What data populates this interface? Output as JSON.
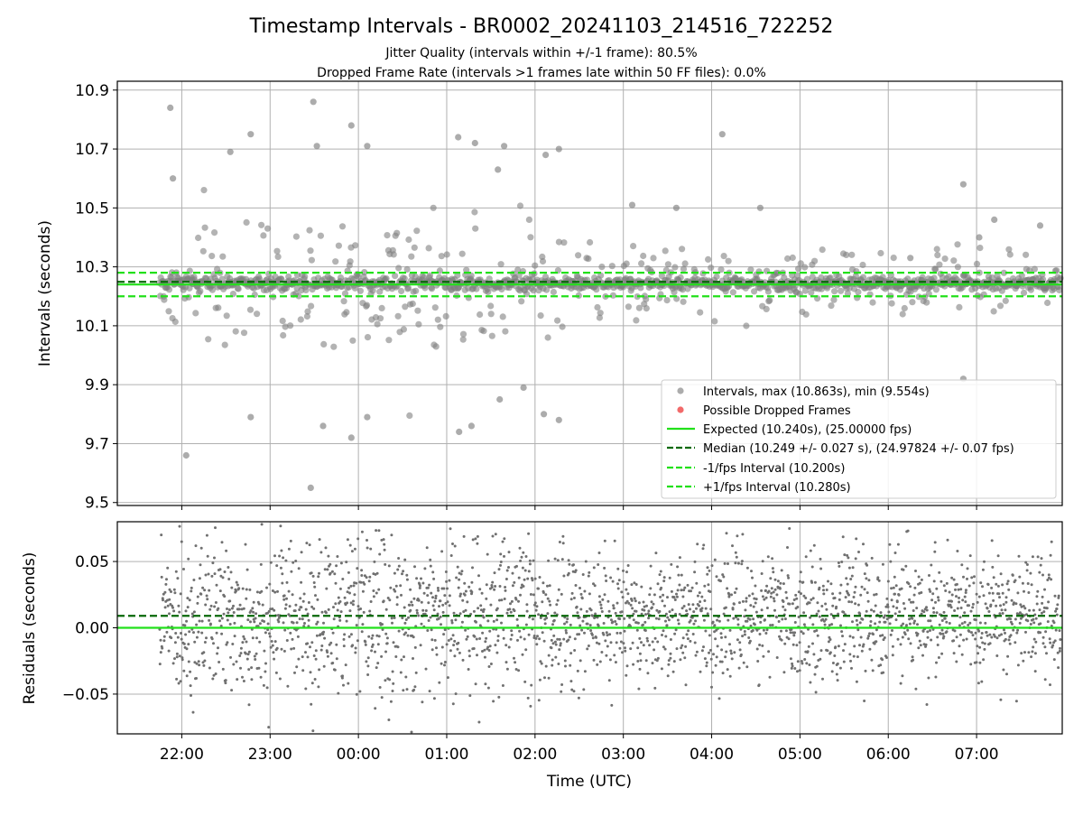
{
  "chart_data": {
    "type": "scatter",
    "title": "Timestamp Intervals - BR0002_20241103_214516_722252",
    "subtitle_lines": [
      "Jitter Quality (intervals within +/-1 frame): 80.5%",
      "Dropped Frame Rate (intervals >1 frames late within 50 FF files): 0.0%"
    ],
    "x_axis": {
      "label": "Time (UTC)",
      "ticks": [
        "22:00",
        "23:00",
        "00:00",
        "01:00",
        "02:00",
        "03:00",
        "04:00",
        "05:00",
        "06:00",
        "07:00"
      ],
      "range_hours": [
        21.27,
        31.97
      ],
      "data_start_hours": 21.75
    },
    "top_panel": {
      "ylabel": "Intervals (seconds)",
      "ylim": [
        9.49,
        10.93
      ],
      "yticks": [
        "9.5",
        "9.7",
        "9.9",
        "10.1",
        "10.3",
        "10.5",
        "10.7",
        "10.9"
      ],
      "grid": true,
      "series": [
        {
          "name": "Intervals, max (10.863s), min (9.554s)",
          "kind": "scatter",
          "color": "#808080",
          "max": 10.863,
          "min": 9.554,
          "center": 10.24,
          "spread": 0.027
        },
        {
          "name": "Possible Dropped Frames",
          "kind": "scatter",
          "color": "#f15a5a",
          "count": 0
        },
        {
          "name": "Expected (10.240s), (25.00000 fps)",
          "kind": "hline",
          "y": 10.24,
          "color": "#22e01a",
          "style": "solid"
        },
        {
          "name": "Median (10.249 +/- 0.027 s), (24.97824 +/- 0.07 fps)",
          "kind": "hline",
          "y": 10.249,
          "color": "#086808",
          "style": "dashed"
        },
        {
          "name": "-1/fps Interval (10.200s)",
          "kind": "hline",
          "y": 10.2,
          "color": "#22e01a",
          "style": "dashed"
        },
        {
          "name": "+1/fps Interval (10.280s)",
          "kind": "hline",
          "y": 10.28,
          "color": "#22e01a",
          "style": "dashed"
        }
      ],
      "legend_position": "lower-right"
    },
    "bottom_panel": {
      "ylabel": "Residuals (seconds)",
      "ylim": [
        -0.08,
        0.08
      ],
      "yticks": [
        "−0.05",
        "0.00",
        "0.05"
      ],
      "ytick_values": [
        -0.05,
        0.0,
        0.05
      ],
      "grid": true,
      "series": [
        {
          "kind": "scatter",
          "color": "#707070",
          "center": 0.009,
          "spread": 0.027
        },
        {
          "kind": "hline",
          "y": 0.0,
          "color": "#22e01a",
          "style": "solid"
        },
        {
          "kind": "hline",
          "y": 0.009,
          "color": "#086808",
          "style": "dashed"
        }
      ]
    },
    "sample_points": {
      "outliers_top": [
        [
          21.87,
          10.84
        ],
        [
          21.9,
          10.6
        ],
        [
          22.05,
          9.66
        ],
        [
          22.55,
          10.69
        ],
        [
          22.78,
          10.75
        ],
        [
          22.78,
          9.79
        ],
        [
          23.46,
          9.55
        ],
        [
          23.49,
          10.86
        ],
        [
          23.53,
          10.71
        ],
        [
          23.6,
          9.76
        ],
        [
          23.92,
          10.78
        ],
        [
          23.92,
          9.72
        ],
        [
          24.1,
          10.71
        ],
        [
          24.1,
          9.79
        ],
        [
          25.13,
          10.74
        ],
        [
          25.14,
          9.74
        ],
        [
          25.32,
          10.72
        ],
        [
          25.28,
          9.76
        ],
        [
          25.58,
          10.63
        ],
        [
          25.6,
          9.85
        ],
        [
          25.65,
          10.71
        ],
        [
          25.87,
          9.89
        ],
        [
          26.12,
          10.68
        ],
        [
          26.1,
          9.8
        ],
        [
          26.27,
          10.7
        ],
        [
          26.27,
          9.78
        ],
        [
          27.1,
          10.51
        ],
        [
          27.6,
          10.5
        ],
        [
          28.12,
          10.75
        ],
        [
          28.55,
          10.5
        ],
        [
          30.25,
          10.33
        ],
        [
          30.85,
          10.58
        ],
        [
          30.85,
          9.92
        ],
        [
          31.03,
          10.4
        ],
        [
          31.2,
          10.46
        ],
        [
          31.72,
          10.44
        ]
      ]
    }
  }
}
